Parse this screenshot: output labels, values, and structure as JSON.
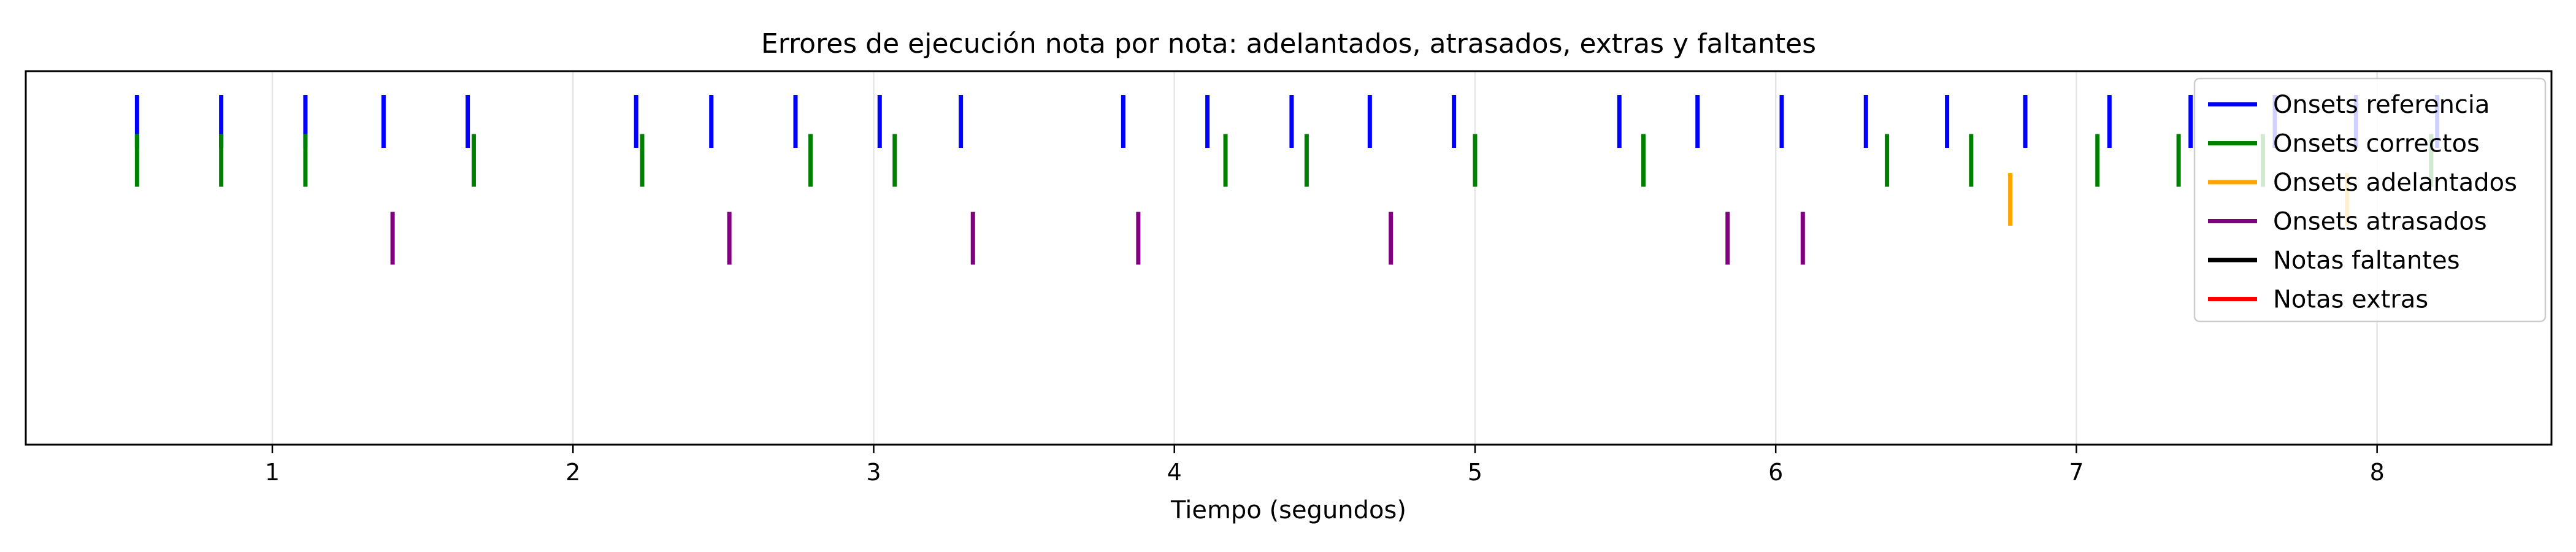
{
  "chart_data": {
    "type": "event-raster",
    "title": "Errores de ejecución nota por nota: adelantados, atrasados, extras y faltantes",
    "xlabel": "Tiempo (segundos)",
    "ylabel": "",
    "xlim": [
      0.18,
      8.58
    ],
    "x_ticks": [
      1,
      2,
      3,
      4,
      5,
      6,
      7,
      8
    ],
    "grid": "vertical",
    "legend_position": "top-right",
    "series": [
      {
        "name": "Onsets referencia",
        "color": "#0000ff",
        "row": 1,
        "x": [
          0.55,
          0.83,
          1.11,
          1.37,
          1.65,
          2.21,
          2.46,
          2.74,
          3.02,
          3.29,
          3.83,
          4.11,
          4.39,
          4.65,
          4.93,
          5.48,
          5.74,
          6.02,
          6.3,
          6.57,
          6.83,
          7.11,
          7.38,
          7.66,
          7.93,
          8.2
        ]
      },
      {
        "name": "Onsets correctos",
        "color": "#008000",
        "row": 2,
        "x": [
          0.55,
          0.83,
          1.11,
          1.67,
          2.23,
          2.79,
          3.07,
          4.17,
          4.44,
          5.0,
          5.56,
          6.37,
          6.65,
          7.07,
          7.34,
          7.62,
          8.18
        ]
      },
      {
        "name": "Onsets adelantados",
        "color": "#ffa500",
        "row": 3,
        "x": [
          6.78,
          7.9
        ]
      },
      {
        "name": "Onsets atrasados",
        "color": "#800080",
        "row": 4,
        "x": [
          1.4,
          2.52,
          3.33,
          3.88,
          4.72,
          5.84,
          6.09
        ]
      },
      {
        "name": "Notas faltantes",
        "color": "#000000",
        "row": 5,
        "x": []
      },
      {
        "name": "Notas extras",
        "color": "#ff0000",
        "row": 6,
        "x": []
      }
    ]
  }
}
